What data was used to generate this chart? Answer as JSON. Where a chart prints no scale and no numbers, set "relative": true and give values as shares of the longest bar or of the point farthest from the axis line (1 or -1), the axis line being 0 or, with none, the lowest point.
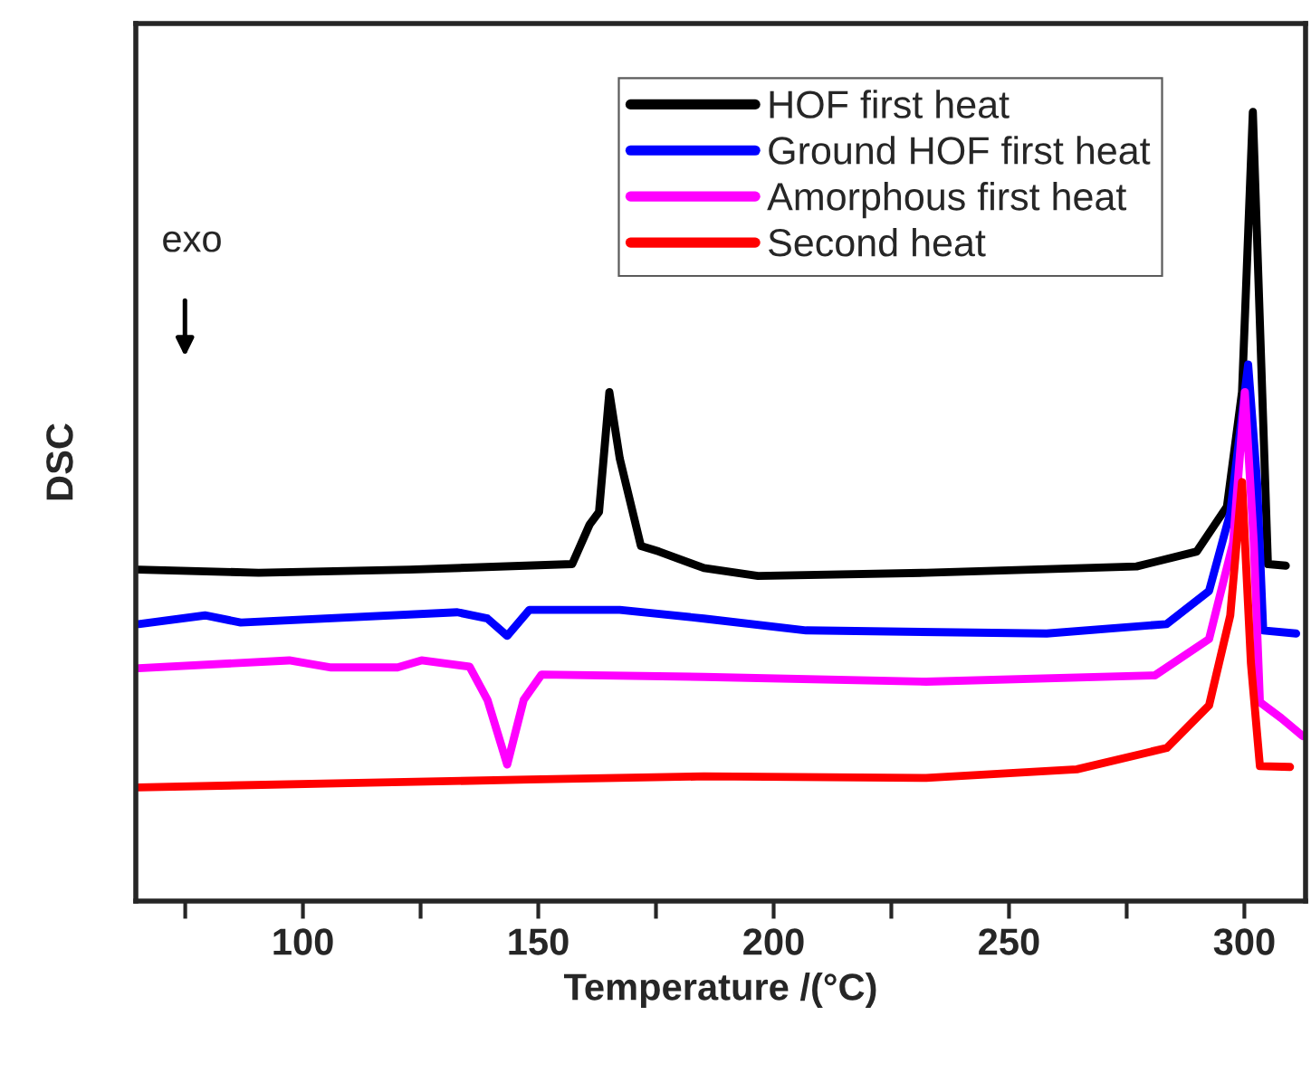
{
  "chart_data": {
    "type": "line",
    "relative": true,
    "xlabel": "Temperature /(°C)",
    "ylabel": "DSC",
    "xlim": [
      64.5,
      313
    ],
    "xticks": [
      {
        "value": 75,
        "label": null
      },
      100,
      {
        "value": 125,
        "label": null
      },
      150,
      {
        "value": 175,
        "label": null
      },
      200,
      {
        "value": 225,
        "label": null
      },
      250,
      {
        "value": 275,
        "label": null
      },
      300
    ],
    "legend": "top right",
    "grid": false,
    "marker": "none",
    "line_style": "solid",
    "annotations": [
      "exo"
    ],
    "series": [
      {
        "name": "HOF first heat",
        "color": "#000000",
        "x": [
          65.1,
          90.6,
          122.7,
          157.2,
          160.9,
          162.9,
          165.1,
          167.3,
          171.8,
          175.6,
          185.2,
          196.7,
          232.4,
          277.1,
          289.9,
          296.3,
          299.5,
          301.8,
          304,
          305,
          308.8
        ],
        "values": [
          0.42,
          0.416,
          0.42,
          0.427,
          0.477,
          0.493,
          0.645,
          0.561,
          0.45,
          0.443,
          0.422,
          0.412,
          0.416,
          0.424,
          0.443,
          0.5,
          0.645,
          1.0,
          0.607,
          0.427,
          0.425
        ]
      },
      {
        "name": "Ground HOF first heat",
        "color": "#0000ff",
        "x": [
          65.1,
          79.2,
          86.8,
          132.8,
          139.2,
          143.4,
          148.1,
          167.3,
          185.2,
          206.9,
          258.0,
          283.5,
          292.5,
          297.0,
          300.8,
          302.7,
          304,
          311
        ],
        "values": [
          0.351,
          0.362,
          0.353,
          0.366,
          0.358,
          0.336,
          0.369,
          0.369,
          0.358,
          0.343,
          0.339,
          0.351,
          0.393,
          0.492,
          0.68,
          0.531,
          0.343,
          0.339
        ]
      },
      {
        "name": "Amorphous first heat",
        "color": "#ff00ff",
        "x": [
          65.1,
          97.1,
          106,
          120.1,
          125.2,
          135.4,
          139.2,
          143.4,
          146.9,
          150.7,
          185.2,
          232.4,
          281.0,
          292.5,
          297.6,
          300.1,
          302.0,
          303.3,
          307.8,
          312.4
        ],
        "values": [
          0.295,
          0.305,
          0.296,
          0.296,
          0.305,
          0.297,
          0.255,
          0.173,
          0.255,
          0.287,
          0.284,
          0.278,
          0.286,
          0.332,
          0.454,
          0.645,
          0.454,
          0.252,
          0.232,
          0.209
        ]
      },
      {
        "name": "Second heat",
        "color": "#ff0000",
        "x": [
          65.1,
          114.2,
          148.1,
          185.2,
          232.4,
          264.4,
          283.5,
          292.5,
          297.0,
          299.5,
          301.4,
          303.3,
          309.7
        ],
        "values": [
          0.144,
          0.15,
          0.154,
          0.158,
          0.156,
          0.167,
          0.194,
          0.248,
          0.362,
          0.531,
          0.301,
          0.171,
          0.17
        ]
      }
    ]
  }
}
